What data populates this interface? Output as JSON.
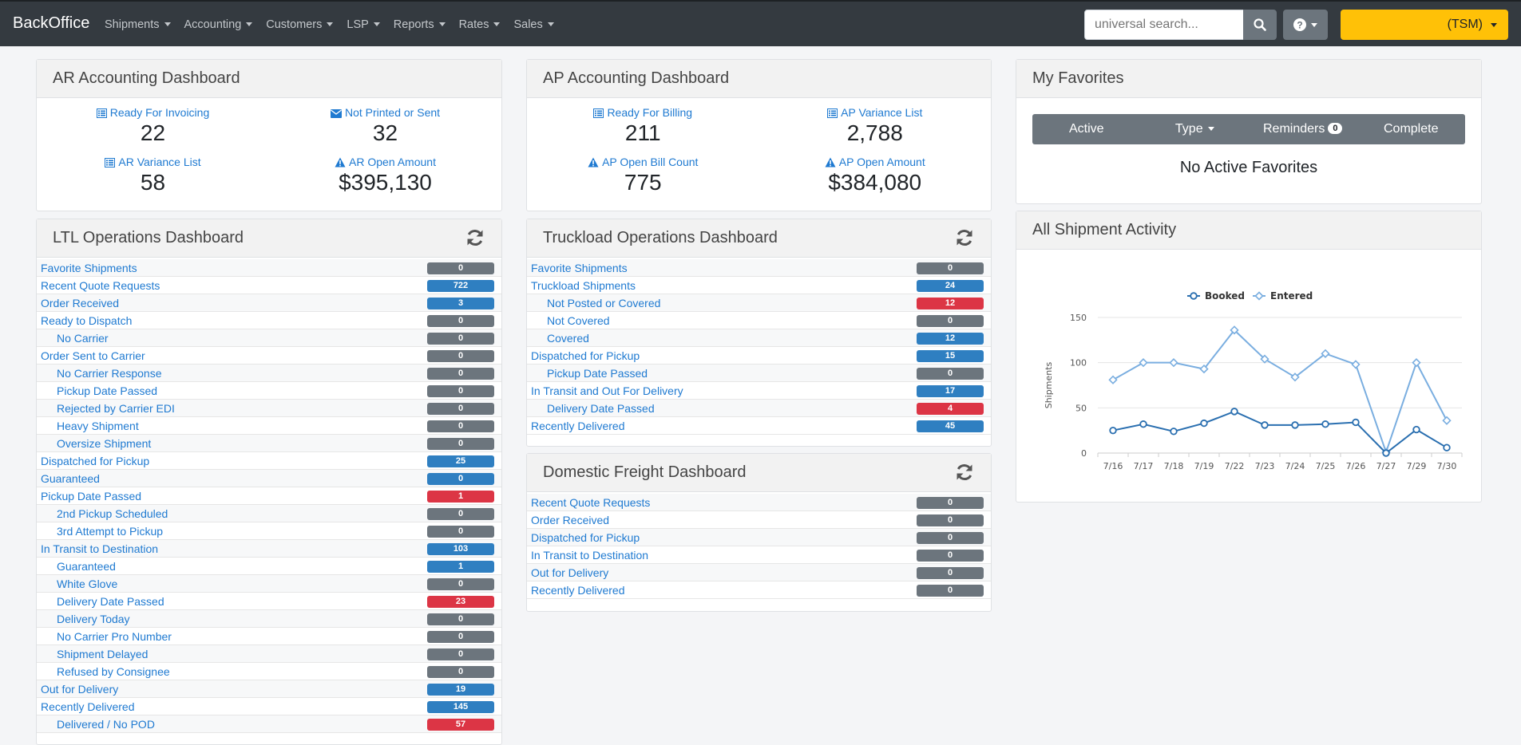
{
  "nav": {
    "brand": "BackOffice",
    "menu": [
      "Shipments",
      "Accounting",
      "Customers",
      "LSP",
      "Reports",
      "Rates",
      "Sales"
    ],
    "search_placeholder": "universal search...",
    "user_label": "(TSM)",
    "accent_color": "#ffc107"
  },
  "ar": {
    "title": "AR Accounting Dashboard",
    "kpis": [
      {
        "label": "Ready For Invoicing",
        "value": "22",
        "icon": "list-icon"
      },
      {
        "label": "Not Printed or Sent",
        "value": "32",
        "icon": "envelope-icon"
      },
      {
        "label": "AR Variance List",
        "value": "58",
        "icon": "list-icon"
      },
      {
        "label": "AR Open Amount",
        "value": "$395,130",
        "icon": "warning-icon"
      }
    ]
  },
  "ap": {
    "title": "AP Accounting Dashboard",
    "kpis": [
      {
        "label": "Ready For Billing",
        "value": "211",
        "icon": "list-icon"
      },
      {
        "label": "AP Variance List",
        "value": "2,788",
        "icon": "list-icon"
      },
      {
        "label": "AP Open Bill Count",
        "value": "775",
        "icon": "warning-icon"
      },
      {
        "label": "AP Open Amount",
        "value": "$384,080",
        "icon": "warning-icon"
      }
    ]
  },
  "favorites": {
    "title": "My Favorites",
    "tabs": [
      "Active",
      "Type",
      "Reminders",
      "Complete"
    ],
    "reminders_count": "0",
    "empty_text": "No Active Favorites"
  },
  "ltl": {
    "title": "LTL Operations Dashboard",
    "rows": [
      {
        "label": "Favorite Shipments",
        "count": "0",
        "status": "gray",
        "indent": false
      },
      {
        "label": "Recent Quote Requests",
        "count": "722",
        "status": "blue",
        "indent": false
      },
      {
        "label": "Order Received",
        "count": "3",
        "status": "blue",
        "indent": false
      },
      {
        "label": "Ready to Dispatch",
        "count": "0",
        "status": "gray",
        "indent": false
      },
      {
        "label": "No Carrier",
        "count": "0",
        "status": "gray",
        "indent": true
      },
      {
        "label": "Order Sent to Carrier",
        "count": "0",
        "status": "gray",
        "indent": false
      },
      {
        "label": "No Carrier Response",
        "count": "0",
        "status": "gray",
        "indent": true
      },
      {
        "label": "Pickup Date Passed",
        "count": "0",
        "status": "gray",
        "indent": true
      },
      {
        "label": "Rejected by Carrier EDI",
        "count": "0",
        "status": "gray",
        "indent": true
      },
      {
        "label": "Heavy Shipment",
        "count": "0",
        "status": "gray",
        "indent": true
      },
      {
        "label": "Oversize Shipment",
        "count": "0",
        "status": "gray",
        "indent": true
      },
      {
        "label": "Dispatched for Pickup",
        "count": "25",
        "status": "blue",
        "indent": false
      },
      {
        "label": "Guaranteed",
        "count": "0",
        "status": "blue",
        "indent": false
      },
      {
        "label": "Pickup Date Passed",
        "count": "1",
        "status": "red",
        "indent": false
      },
      {
        "label": "2nd Pickup Scheduled",
        "count": "0",
        "status": "gray",
        "indent": true
      },
      {
        "label": "3rd Attempt to Pickup",
        "count": "0",
        "status": "gray",
        "indent": true
      },
      {
        "label": "In Transit to Destination",
        "count": "103",
        "status": "blue",
        "indent": false
      },
      {
        "label": "Guaranteed",
        "count": "1",
        "status": "blue",
        "indent": true
      },
      {
        "label": "White Glove",
        "count": "0",
        "status": "gray",
        "indent": true
      },
      {
        "label": "Delivery Date Passed",
        "count": "23",
        "status": "red",
        "indent": true
      },
      {
        "label": "Delivery Today",
        "count": "0",
        "status": "gray",
        "indent": true
      },
      {
        "label": "No Carrier Pro Number",
        "count": "0",
        "status": "gray",
        "indent": true
      },
      {
        "label": "Shipment Delayed",
        "count": "0",
        "status": "gray",
        "indent": true
      },
      {
        "label": "Refused by Consignee",
        "count": "0",
        "status": "gray",
        "indent": true
      },
      {
        "label": "Out for Delivery",
        "count": "19",
        "status": "blue",
        "indent": false
      },
      {
        "label": "Recently Delivered",
        "count": "145",
        "status": "blue",
        "indent": false
      },
      {
        "label": "Delivered / No POD",
        "count": "57",
        "status": "red",
        "indent": true
      }
    ]
  },
  "tl": {
    "title": "Truckload Operations Dashboard",
    "rows": [
      {
        "label": "Favorite Shipments",
        "count": "0",
        "status": "gray",
        "indent": false
      },
      {
        "label": "Truckload Shipments",
        "count": "24",
        "status": "blue",
        "indent": false
      },
      {
        "label": "Not Posted or Covered",
        "count": "12",
        "status": "red",
        "indent": true
      },
      {
        "label": "Not Covered",
        "count": "0",
        "status": "gray",
        "indent": true
      },
      {
        "label": "Covered",
        "count": "12",
        "status": "blue",
        "indent": true
      },
      {
        "label": "Dispatched for Pickup",
        "count": "15",
        "status": "blue",
        "indent": false
      },
      {
        "label": "Pickup Date Passed",
        "count": "0",
        "status": "gray",
        "indent": true
      },
      {
        "label": "In Transit and Out For Delivery",
        "count": "17",
        "status": "blue",
        "indent": false
      },
      {
        "label": "Delivery Date Passed",
        "count": "4",
        "status": "red",
        "indent": true
      },
      {
        "label": "Recently Delivered",
        "count": "45",
        "status": "blue",
        "indent": false
      }
    ]
  },
  "df": {
    "title": "Domestic Freight Dashboard",
    "rows": [
      {
        "label": "Recent Quote Requests",
        "count": "0",
        "status": "gray",
        "indent": false
      },
      {
        "label": "Order Received",
        "count": "0",
        "status": "gray",
        "indent": false
      },
      {
        "label": "Dispatched for Pickup",
        "count": "0",
        "status": "gray",
        "indent": false
      },
      {
        "label": "In Transit to Destination",
        "count": "0",
        "status": "gray",
        "indent": false
      },
      {
        "label": "Out for Delivery",
        "count": "0",
        "status": "gray",
        "indent": false
      },
      {
        "label": "Recently Delivered",
        "count": "0",
        "status": "gray",
        "indent": false
      }
    ]
  },
  "activity": {
    "title": "All Shipment Activity",
    "chart_data": {
      "type": "line",
      "categories": [
        "7/16",
        "7/17",
        "7/18",
        "7/19",
        "7/22",
        "7/23",
        "7/24",
        "7/25",
        "7/26",
        "7/27",
        "7/29",
        "7/30"
      ],
      "ylabel": "Shipments",
      "ylim": [
        0,
        150
      ],
      "yticks": [
        0,
        50,
        100,
        150
      ],
      "grid": true,
      "legend": "top",
      "series": [
        {
          "name": "Booked",
          "values": [
            25,
            32,
            24,
            33,
            46,
            31,
            31,
            32,
            34,
            0,
            26,
            6
          ],
          "color": "#2a6fb0"
        },
        {
          "name": "Entered",
          "values": [
            81,
            100,
            100,
            93,
            136,
            104,
            84,
            110,
            98,
            1,
            100,
            36
          ],
          "color": "#7aaee0"
        }
      ]
    }
  }
}
